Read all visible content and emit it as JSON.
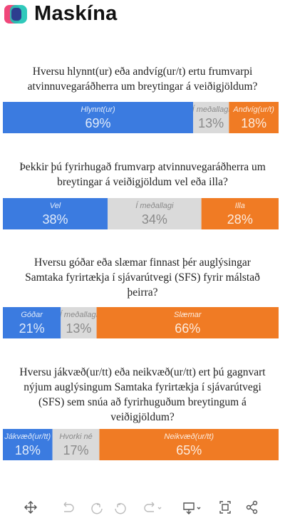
{
  "header": {
    "brand": "Maskína"
  },
  "chart_data": [
    {
      "type": "bar",
      "stacked": true,
      "title": "Hversu hlynnt(ur) eða andvíg(ur/t) ertu frumvarpi atvinnuvegaráðherra um breytingar á veiðigjöldum?",
      "xlim": [
        0,
        100
      ],
      "series": [
        {
          "name": "Hlynnt(ur)",
          "color": "#3b7be0",
          "values": [
            69
          ],
          "value_labels": [
            "69%"
          ]
        },
        {
          "name": "Í meðallagi",
          "color": "#dadada",
          "values": [
            13
          ],
          "value_labels": [
            "13%"
          ]
        },
        {
          "name": "Andvíg(ur/t)",
          "color": "#f07b24",
          "values": [
            18
          ],
          "value_labels": [
            "18%"
          ]
        }
      ]
    },
    {
      "type": "bar",
      "stacked": true,
      "title": "Þekkir þú fyrirhugað frumvarp atvinnuvegaráðherra um breytingar á veiðigjöldum vel eða illa?",
      "xlim": [
        0,
        100
      ],
      "series": [
        {
          "name": "Vel",
          "color": "#3b7be0",
          "values": [
            38
          ],
          "value_labels": [
            "38%"
          ]
        },
        {
          "name": "Í meðallagi",
          "color": "#dadada",
          "values": [
            34
          ],
          "value_labels": [
            "34%"
          ]
        },
        {
          "name": "Illa",
          "color": "#f07b24",
          "values": [
            28
          ],
          "value_labels": [
            "28%"
          ]
        }
      ]
    },
    {
      "type": "bar",
      "stacked": true,
      "title": "Hversu góðar eða slæmar finnast þér auglýsingar Samtaka fyrirtækja í sjávarútvegi (SFS) fyrir málstað þeirra?",
      "xlim": [
        0,
        100
      ],
      "series": [
        {
          "name": "Góðar",
          "color": "#3b7be0",
          "values": [
            21
          ],
          "value_labels": [
            "21%"
          ]
        },
        {
          "name": "Í meðallagi",
          "color": "#dadada",
          "values": [
            13
          ],
          "value_labels": [
            "13%"
          ]
        },
        {
          "name": "Slæmar",
          "color": "#f07b24",
          "values": [
            66
          ],
          "value_labels": [
            "66%"
          ]
        }
      ]
    },
    {
      "type": "bar",
      "stacked": true,
      "title": "Hversu jákvæð(ur/tt) eða neikvæð(ur/tt) ert þú gagnvart nýjum auglýsingum Samtaka fyrirtækja í sjávarútvegi (SFS) sem snúa að fyrirhuguðum breytingum á veiðigjöldum?",
      "xlim": [
        0,
        100
      ],
      "series": [
        {
          "name": "Jákvæð(ur/tt)",
          "color": "#3b7be0",
          "values": [
            18
          ],
          "value_labels": [
            "18%"
          ]
        },
        {
          "name": "Hvorki né",
          "color": "#dadada",
          "values": [
            17
          ],
          "value_labels": [
            "17%"
          ]
        },
        {
          "name": "Neikvæð(ur/tt)",
          "color": "#f07b24",
          "values": [
            65
          ],
          "value_labels": [
            "65%"
          ]
        }
      ]
    }
  ]
}
